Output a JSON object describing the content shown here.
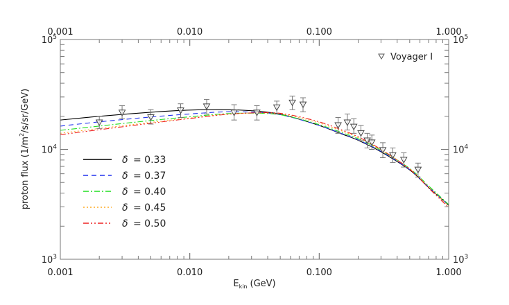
{
  "chart_data": {
    "type": "line",
    "title": "",
    "xlabel": "E_kin (GeV)",
    "xlabel_main": "E",
    "xlabel_sub": "kin",
    "xlabel_unit": "(GeV)",
    "ylabel": "proton flux (1/m²/s/sr/GeV)",
    "ylabel_pre": "proton flux (1/m",
    "ylabel_sup": "2",
    "ylabel_post": "/s/sr/GeV)",
    "xscale": "log",
    "yscale": "log",
    "xlim": [
      0.001,
      1.0
    ],
    "ylim": [
      1000,
      100000
    ],
    "x_ticks": [
      "0.001",
      "0.010",
      "0.100",
      "1.000"
    ],
    "y_ticks": [
      {
        "base": "10",
        "exp": "3",
        "value": 1000
      },
      {
        "base": "10",
        "exp": "4",
        "value": 10000
      },
      {
        "base": "10",
        "exp": "5",
        "value": 100000
      }
    ],
    "grid": false,
    "legend_position": "lower-left (model lines), upper-right (data)",
    "series": [
      {
        "name": "δ = 0.33",
        "label_sym": "δ",
        "label_val": "= 0.33",
        "color": "#000000",
        "dash": "",
        "x": [
          0.001,
          0.002,
          0.005,
          0.01,
          0.02,
          0.04,
          0.06,
          0.1,
          0.15,
          0.2,
          0.3,
          0.5,
          0.7,
          1.0
        ],
        "y": [
          18500,
          20000,
          21800,
          22800,
          23000,
          21800,
          19800,
          16500,
          13800,
          12100,
          9500,
          6500,
          4500,
          3100
        ]
      },
      {
        "name": "δ = 0.37",
        "label_sym": "δ",
        "label_val": "= 0.37",
        "color": "#2233ee",
        "dash": "7,5",
        "x": [
          0.001,
          0.002,
          0.005,
          0.01,
          0.02,
          0.04,
          0.06,
          0.1,
          0.15,
          0.2,
          0.3,
          0.5,
          0.7,
          1.0
        ],
        "y": [
          16300,
          17800,
          19700,
          21000,
          22000,
          21400,
          19700,
          16500,
          13900,
          12200,
          9600,
          6550,
          4550,
          3100
        ]
      },
      {
        "name": "δ = 0.40",
        "label_sym": "δ",
        "label_val": "= 0.40",
        "color": "#22dd22",
        "dash": "8,3,2,3",
        "x": [
          0.001,
          0.002,
          0.005,
          0.01,
          0.02,
          0.04,
          0.06,
          0.1,
          0.15,
          0.2,
          0.3,
          0.5,
          0.7,
          1.0
        ],
        "y": [
          14900,
          16300,
          18300,
          19800,
          21200,
          21200,
          19800,
          16800,
          14200,
          12500,
          9800,
          6700,
          4650,
          3150
        ]
      },
      {
        "name": "δ = 0.45",
        "label_sym": "δ",
        "label_val": "= 0.45",
        "color": "#ffaa22",
        "dash": "2,3",
        "x": [
          0.001,
          0.002,
          0.005,
          0.01,
          0.02,
          0.04,
          0.06,
          0.1,
          0.15,
          0.2,
          0.3,
          0.5,
          0.7,
          1.0
        ],
        "y": [
          14000,
          15500,
          17600,
          19300,
          21000,
          21400,
          20300,
          17400,
          14700,
          12800,
          9900,
          6650,
          4550,
          3050
        ]
      },
      {
        "name": "δ = 0.50",
        "label_sym": "δ",
        "label_val": "= 0.50",
        "color": "#ee2222",
        "dash": "8,3,2,3,2,3",
        "x": [
          0.001,
          0.002,
          0.005,
          0.01,
          0.02,
          0.04,
          0.06,
          0.1,
          0.15,
          0.2,
          0.3,
          0.5,
          0.7,
          1.0
        ],
        "y": [
          13600,
          15100,
          17300,
          19100,
          20900,
          21600,
          20600,
          17800,
          15000,
          13000,
          10000,
          6600,
          4450,
          2950
        ]
      }
    ],
    "data_points": {
      "name": "Voyager I",
      "marker": "down-triangle",
      "color": "#555555",
      "points": [
        {
          "x": 0.002,
          "y": 17500,
          "ylo": 15500,
          "yhi": 20000
        },
        {
          "x": 0.003,
          "y": 21500,
          "ylo": 19000,
          "yhi": 25000
        },
        {
          "x": 0.005,
          "y": 19500,
          "ylo": 17000,
          "yhi": 23000
        },
        {
          "x": 0.0085,
          "y": 22500,
          "ylo": 19500,
          "yhi": 26000
        },
        {
          "x": 0.0135,
          "y": 24500,
          "ylo": 21000,
          "yhi": 28500
        },
        {
          "x": 0.022,
          "y": 21500,
          "ylo": 18500,
          "yhi": 25500
        },
        {
          "x": 0.033,
          "y": 21500,
          "ylo": 18500,
          "yhi": 25000
        },
        {
          "x": 0.047,
          "y": 24000,
          "ylo": 21000,
          "yhi": 27500
        },
        {
          "x": 0.062,
          "y": 26500,
          "ylo": 23000,
          "yhi": 30500
        },
        {
          "x": 0.075,
          "y": 25500,
          "ylo": 22000,
          "yhi": 29500
        },
        {
          "x": 0.14,
          "y": 16500,
          "ylo": 14000,
          "yhi": 19500
        },
        {
          "x": 0.165,
          "y": 17500,
          "ylo": 15000,
          "yhi": 21000
        },
        {
          "x": 0.185,
          "y": 16000,
          "ylo": 14000,
          "yhi": 19000
        },
        {
          "x": 0.21,
          "y": 14000,
          "ylo": 12000,
          "yhi": 16500
        },
        {
          "x": 0.235,
          "y": 12000,
          "ylo": 10300,
          "yhi": 14000
        },
        {
          "x": 0.255,
          "y": 11500,
          "ylo": 10000,
          "yhi": 13500
        },
        {
          "x": 0.31,
          "y": 9800,
          "ylo": 8400,
          "yhi": 11500
        },
        {
          "x": 0.37,
          "y": 8800,
          "ylo": 7600,
          "yhi": 10300
        },
        {
          "x": 0.45,
          "y": 8000,
          "ylo": 6900,
          "yhi": 9300
        },
        {
          "x": 0.58,
          "y": 6500,
          "ylo": 5600,
          "yhi": 7500
        }
      ]
    }
  }
}
